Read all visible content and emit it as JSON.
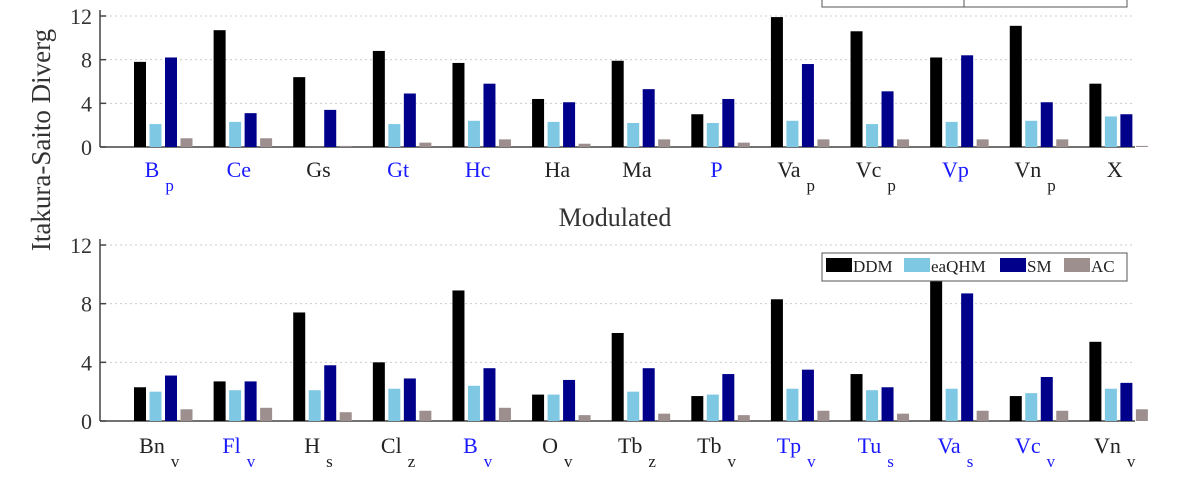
{
  "figure": {
    "ylabel": "Itakura-Saito Diverg",
    "colors": {
      "DDM": "#000000",
      "eaQHM": "#7ec8e3",
      "SM": "#00008b",
      "AC": "#9e8f8f",
      "blue_label": "#1a1aff",
      "black_label": "#222222",
      "axis": "#444444",
      "grid": "#cccccc"
    }
  },
  "chart_data": [
    {
      "type": "bar",
      "title": "",
      "xlabel": "",
      "ylabel": "Itakura-Saito Diverg",
      "ylim": [
        0,
        12
      ],
      "yticks": [
        "0",
        "4",
        "8",
        "12"
      ],
      "grid": "horizontal dotted",
      "legend": "top-right (partially cropped)",
      "categories": [
        {
          "base": "B",
          "sub": "p",
          "blue": true
        },
        {
          "base": "Ce",
          "sub": "",
          "blue": true
        },
        {
          "base": "Gs",
          "sub": "",
          "blue": false
        },
        {
          "base": "Gt",
          "sub": "",
          "blue": true
        },
        {
          "base": "Hc",
          "sub": "",
          "blue": true
        },
        {
          "base": "Ha",
          "sub": "",
          "blue": false
        },
        {
          "base": "Ma",
          "sub": "",
          "blue": false
        },
        {
          "base": "P",
          "sub": "",
          "blue": true
        },
        {
          "base": "Va",
          "sub": "p",
          "blue": false
        },
        {
          "base": "Vc",
          "sub": "p",
          "blue": false
        },
        {
          "base": "Vp",
          "sub": "",
          "blue": true
        },
        {
          "base": "Vn",
          "sub": "p",
          "blue": false
        },
        {
          "base": "X",
          "sub": "",
          "blue": false
        }
      ],
      "series": [
        {
          "key": "DDM",
          "values": [
            7.8,
            10.7,
            6.4,
            8.8,
            7.7,
            4.4,
            7.9,
            3.0,
            11.9,
            10.6,
            8.2,
            11.1,
            5.8
          ]
        },
        {
          "key": "eaQHM",
          "values": [
            2.1,
            2.3,
            0.0,
            2.1,
            2.4,
            2.3,
            2.2,
            2.2,
            2.4,
            2.1,
            2.3,
            2.4,
            2.8
          ]
        },
        {
          "key": "SM",
          "values": [
            8.2,
            3.1,
            3.4,
            4.9,
            5.8,
            4.1,
            5.3,
            4.4,
            7.6,
            5.1,
            8.4,
            4.1,
            3.0
          ]
        },
        {
          "key": "AC",
          "values": [
            0.8,
            0.8,
            0.1,
            0.4,
            0.7,
            0.3,
            0.7,
            0.4,
            0.7,
            0.7,
            0.7,
            0.7,
            0.1
          ]
        }
      ]
    },
    {
      "type": "bar",
      "title": "Modulated",
      "xlabel": "",
      "ylabel": "",
      "ylim": [
        0,
        12
      ],
      "yticks": [
        "0",
        "4",
        "8",
        "12"
      ],
      "grid": "horizontal dotted",
      "legend": "top-right",
      "legend_labels": [
        "DDM",
        "eaQHM",
        "SM",
        "AC"
      ],
      "categories": [
        {
          "base": "Bn",
          "sub": "v",
          "blue": false
        },
        {
          "base": "Fl",
          "sub": "v",
          "blue": true
        },
        {
          "base": "H",
          "sub": "s",
          "blue": false
        },
        {
          "base": "Cl",
          "sub": "z",
          "blue": false
        },
        {
          "base": "B",
          "sub": "v",
          "blue": true
        },
        {
          "base": "O",
          "sub": "v",
          "blue": false
        },
        {
          "base": "Tb",
          "sub": "z",
          "blue": false
        },
        {
          "base": "Tb",
          "sub": "v",
          "blue": false
        },
        {
          "base": "Tp",
          "sub": "v",
          "blue": true
        },
        {
          "base": "Tu",
          "sub": "s",
          "blue": true
        },
        {
          "base": "Va",
          "sub": "s",
          "blue": true
        },
        {
          "base": "Vc",
          "sub": "v",
          "blue": true
        },
        {
          "base": "Vn",
          "sub": "v",
          "blue": false
        }
      ],
      "series": [
        {
          "key": "DDM",
          "name": "DDM",
          "values": [
            2.3,
            2.7,
            7.4,
            4.0,
            8.9,
            1.8,
            6.0,
            1.7,
            8.3,
            3.2,
            9.9,
            1.7,
            5.4
          ]
        },
        {
          "key": "eaQHM",
          "name": "eaQHM",
          "values": [
            2.0,
            2.1,
            2.1,
            2.2,
            2.4,
            1.8,
            2.0,
            1.8,
            2.2,
            2.1,
            2.2,
            1.9,
            2.2
          ]
        },
        {
          "key": "SM",
          "name": "SM",
          "values": [
            3.1,
            2.7,
            3.8,
            2.9,
            3.6,
            2.8,
            3.6,
            3.2,
            3.5,
            2.3,
            8.7,
            3.0,
            2.6
          ]
        },
        {
          "key": "AC",
          "name": "AC",
          "values": [
            0.8,
            0.9,
            0.6,
            0.7,
            0.9,
            0.4,
            0.5,
            0.4,
            0.7,
            0.5,
            0.7,
            0.7,
            0.8
          ]
        }
      ]
    }
  ]
}
